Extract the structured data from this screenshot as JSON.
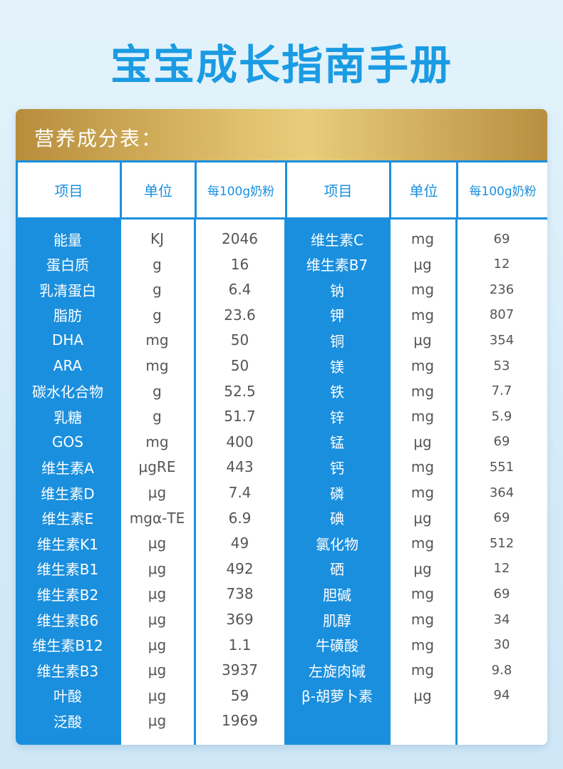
{
  "title": "宝宝成长指南手册",
  "table": {
    "caption": "营养成分表：",
    "header": [
      "项目",
      "单位",
      "每100g奶粉",
      "项目",
      "单位",
      "每100g奶粉"
    ],
    "left_rows": [
      [
        "能量",
        "KJ",
        "2046"
      ],
      [
        "蛋白质",
        "g",
        "16"
      ],
      [
        "乳清蛋白",
        "g",
        "6.4"
      ],
      [
        "脂肪",
        "g",
        "23.6"
      ],
      [
        "DHA",
        "mg",
        "50"
      ],
      [
        "ARA",
        "mg",
        "50"
      ],
      [
        "碳水化合物",
        "g",
        "52.5"
      ],
      [
        "乳糖",
        "g",
        "51.7"
      ],
      [
        "GOS",
        "mg",
        "400"
      ],
      [
        "维生素A",
        "μgRE",
        "443"
      ],
      [
        "维生素D",
        "μg",
        "7.4"
      ],
      [
        "维生素E",
        "mgα-TE",
        "6.9"
      ],
      [
        "维生素K1",
        "μg",
        "49"
      ],
      [
        "维生素B1",
        "μg",
        "492"
      ],
      [
        "维生素B2",
        "μg",
        "738"
      ],
      [
        "维生素B6",
        "μg",
        "369"
      ],
      [
        "维生素B12",
        "μg",
        "1.1"
      ],
      [
        "维生素B3",
        "μg",
        "3937"
      ],
      [
        "叶酸",
        "μg",
        "59"
      ],
      [
        "泛酸",
        "μg",
        "1969"
      ]
    ],
    "right_rows": [
      [
        "维生素C",
        "mg",
        "69"
      ],
      [
        "维生素B7",
        "μg",
        "12"
      ],
      [
        "钠",
        "mg",
        "236"
      ],
      [
        "钾",
        "mg",
        "807"
      ],
      [
        "铜",
        "μg",
        "354"
      ],
      [
        "镁",
        "mg",
        "53"
      ],
      [
        "铁",
        "mg",
        "7.7"
      ],
      [
        "锌",
        "mg",
        "5.9"
      ],
      [
        "锰",
        "μg",
        "69"
      ],
      [
        "钙",
        "mg",
        "551"
      ],
      [
        "磷",
        "mg",
        "364"
      ],
      [
        "碘",
        "μg",
        "69"
      ],
      [
        "氯化物",
        "mg",
        "512"
      ],
      [
        "硒",
        "μg",
        "12"
      ],
      [
        "胆碱",
        "mg",
        "69"
      ],
      [
        "肌醇",
        "mg",
        "34"
      ],
      [
        "牛磺酸",
        "mg",
        "30"
      ],
      [
        "左旋肉碱",
        "mg",
        "9.8"
      ],
      [
        "β-胡萝卜素",
        "μg",
        "94"
      ]
    ]
  }
}
